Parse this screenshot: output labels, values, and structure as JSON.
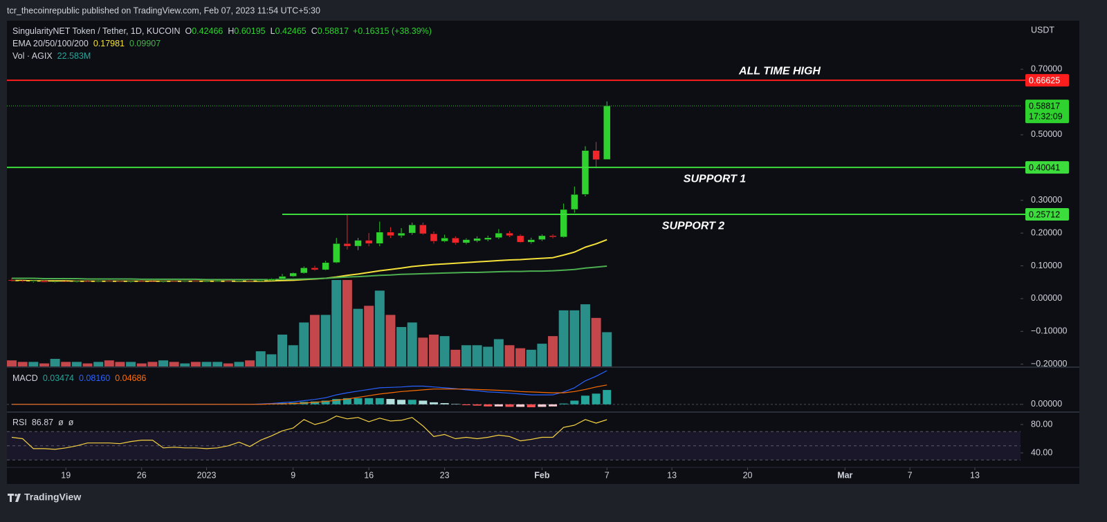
{
  "header": {
    "publisher": "tcr_thecoinrepublic published on TradingView.com, Feb 07, 2023 11:54 UTC+5:30"
  },
  "footer": {
    "brand": "TradingView"
  },
  "chart_data": {
    "type": "candlestick",
    "title": "SingularityNET Token / Tether, 1D, KUCOIN",
    "ohlc_labels": [
      "O",
      "H",
      "L",
      "C"
    ],
    "change": "+0.16315 (+38.39%)",
    "currency": "USDT",
    "countdown": "17:32:09",
    "up_color": "#2ed12e",
    "down_color": "#f2262a",
    "open": [
      0.057,
      0.054,
      0.052,
      0.054,
      0.05,
      0.052,
      0.051,
      0.053,
      0.052,
      0.054,
      0.053,
      0.051,
      0.053,
      0.052,
      0.051,
      0.053,
      0.052,
      0.054,
      0.052,
      0.053,
      0.054,
      0.053,
      0.055,
      0.054,
      0.056,
      0.06,
      0.068,
      0.078,
      0.094,
      0.088,
      0.11,
      0.168,
      0.16,
      0.178,
      0.168,
      0.203,
      0.192,
      0.2,
      0.225,
      0.198,
      0.175,
      0.185,
      0.17,
      0.176,
      0.18,
      0.186,
      0.2,
      0.192,
      0.172,
      0.18,
      0.192,
      0.188,
      0.272,
      0.318,
      0.452,
      0.42466
    ],
    "high": [
      0.063,
      0.057,
      0.056,
      0.057,
      0.054,
      0.055,
      0.055,
      0.056,
      0.056,
      0.057,
      0.055,
      0.055,
      0.056,
      0.054,
      0.055,
      0.055,
      0.056,
      0.056,
      0.055,
      0.056,
      0.057,
      0.057,
      0.059,
      0.058,
      0.062,
      0.075,
      0.08,
      0.098,
      0.1,
      0.115,
      0.185,
      0.258,
      0.185,
      0.2,
      0.235,
      0.218,
      0.215,
      0.232,
      0.232,
      0.205,
      0.195,
      0.19,
      0.184,
      0.19,
      0.192,
      0.212,
      0.206,
      0.196,
      0.186,
      0.196,
      0.196,
      0.29,
      0.342,
      0.465,
      0.478,
      0.60195
    ],
    "low": [
      0.052,
      0.05,
      0.049,
      0.049,
      0.048,
      0.05,
      0.049,
      0.051,
      0.05,
      0.052,
      0.05,
      0.049,
      0.051,
      0.05,
      0.049,
      0.051,
      0.05,
      0.051,
      0.05,
      0.051,
      0.052,
      0.051,
      0.053,
      0.052,
      0.054,
      0.058,
      0.066,
      0.076,
      0.085,
      0.086,
      0.108,
      0.15,
      0.148,
      0.16,
      0.16,
      0.185,
      0.186,
      0.195,
      0.195,
      0.168,
      0.172,
      0.165,
      0.166,
      0.172,
      0.175,
      0.182,
      0.188,
      0.17,
      0.168,
      0.176,
      0.184,
      0.186,
      0.262,
      0.312,
      0.398,
      0.42465
    ],
    "close": [
      0.054,
      0.052,
      0.054,
      0.05,
      0.052,
      0.051,
      0.053,
      0.052,
      0.054,
      0.053,
      0.051,
      0.053,
      0.052,
      0.051,
      0.053,
      0.052,
      0.054,
      0.052,
      0.053,
      0.054,
      0.053,
      0.055,
      0.054,
      0.056,
      0.06,
      0.068,
      0.078,
      0.094,
      0.088,
      0.11,
      0.168,
      0.16,
      0.178,
      0.168,
      0.203,
      0.192,
      0.2,
      0.225,
      0.198,
      0.175,
      0.185,
      0.17,
      0.18,
      0.184,
      0.186,
      0.2,
      0.192,
      0.172,
      0.18,
      0.192,
      0.188,
      0.272,
      0.318,
      0.452,
      0.424,
      0.58817
    ],
    "xlim": [
      -0.45,
      93.22
    ],
    "xticks": [
      {
        "value": 5,
        "label": "19"
      },
      {
        "value": 12,
        "label": "26"
      },
      {
        "value": 18,
        "label": "2023"
      },
      {
        "value": 26,
        "label": "9"
      },
      {
        "value": 33,
        "label": "16"
      },
      {
        "value": 40,
        "label": "23"
      },
      {
        "value": 49,
        "label": "Feb"
      },
      {
        "value": 55,
        "label": "7"
      },
      {
        "value": 61,
        "label": "13"
      },
      {
        "value": 68,
        "label": "20"
      },
      {
        "value": 77,
        "label": "Mar"
      },
      {
        "value": 83,
        "label": "7"
      },
      {
        "value": 89,
        "label": "13"
      }
    ],
    "ylim": [
      -0.207,
      0.848
    ],
    "yticks": [
      {
        "value": 0.7,
        "label": "0.70000"
      },
      {
        "value": 0.5,
        "label": "0.50000"
      },
      {
        "value": 0.3,
        "label": "0.30000"
      },
      {
        "value": 0.2,
        "label": "0.20000"
      },
      {
        "value": 0.1,
        "label": "0.10000"
      },
      {
        "value": 0,
        "label": "0.00000"
      },
      {
        "value": -0.1,
        "label": "−0.10000"
      },
      {
        "value": -0.2,
        "label": "−0.20000"
      }
    ],
    "ema": {
      "name": "EMA 20/50/100/200",
      "series": [
        {
          "color": "#f5e13a",
          "values": [
            0.055,
            0.055,
            0.054,
            0.054,
            0.054,
            0.054,
            0.053,
            0.053,
            0.053,
            0.053,
            0.053,
            0.053,
            0.053,
            0.053,
            0.053,
            0.053,
            0.053,
            0.053,
            0.053,
            0.053,
            0.053,
            0.053,
            0.053,
            0.053,
            0.054,
            0.055,
            0.056,
            0.058,
            0.06,
            0.062,
            0.066,
            0.071,
            0.075,
            0.08,
            0.085,
            0.089,
            0.093,
            0.098,
            0.101,
            0.104,
            0.106,
            0.108,
            0.11,
            0.112,
            0.114,
            0.116,
            0.118,
            0.119,
            0.121,
            0.123,
            0.125,
            0.133,
            0.142,
            0.157,
            0.167,
            0.17981
          ]
        },
        {
          "color": "#4caf50",
          "values": [
            0.062,
            0.062,
            0.062,
            0.061,
            0.061,
            0.061,
            0.061,
            0.06,
            0.06,
            0.06,
            0.06,
            0.06,
            0.059,
            0.059,
            0.059,
            0.059,
            0.059,
            0.059,
            0.058,
            0.058,
            0.058,
            0.058,
            0.058,
            0.058,
            0.058,
            0.059,
            0.059,
            0.06,
            0.061,
            0.062,
            0.064,
            0.066,
            0.067,
            0.069,
            0.071,
            0.072,
            0.074,
            0.075,
            0.076,
            0.077,
            0.078,
            0.079,
            0.08,
            0.08,
            0.081,
            0.082,
            0.083,
            0.083,
            0.084,
            0.084,
            0.085,
            0.087,
            0.089,
            0.093,
            0.096,
            0.09907
          ]
        }
      ]
    },
    "volume": {
      "name": "Vol · AGIX",
      "value_label": "22.583M",
      "up_color": "#2a8f88",
      "down_color": "#c4474b",
      "label_color": "#26a69a",
      "values": [
        4,
        3,
        3,
        2,
        5,
        3,
        3,
        2,
        3,
        4,
        3,
        3,
        2,
        3,
        4,
        3,
        2,
        3,
        3,
        3,
        2,
        3,
        4,
        10,
        8,
        21,
        14,
        29,
        34,
        34,
        57,
        57,
        38,
        40,
        50,
        34,
        26,
        29,
        19,
        21,
        20,
        11,
        14,
        14,
        13,
        18,
        14,
        12,
        11,
        15,
        20,
        37,
        37,
        41,
        32,
        22.583
      ]
    },
    "levels": [
      {
        "value": 0.66625,
        "color": "#ff1e1e",
        "label": "ALL TIME HIGH"
      },
      {
        "value": 0.40041,
        "color": "#3cdc3c",
        "label": "SUPPORT 1"
      },
      {
        "value": 0.25712,
        "color": "#3cdc3c",
        "label": "SUPPORT 2"
      }
    ],
    "macd": {
      "name": "MACD",
      "ylim": [
        -0.017,
        0.0884
      ],
      "yticks": [
        {
          "value": 0,
          "label": "0.00000"
        }
      ],
      "histogram": {
        "colors": [
          "#26a69a",
          "#b2dfdb",
          "#ff5252",
          "#ffcdd2"
        ],
        "values": [
          0,
          0,
          0,
          0,
          0,
          0,
          0,
          0,
          0,
          0,
          0,
          0,
          0,
          0,
          0,
          0,
          0,
          0,
          0,
          0,
          0,
          0,
          0,
          0.001,
          0.001,
          0.003,
          0.004,
          0.006,
          0.007,
          0.009,
          0.013,
          0.015,
          0.015,
          0.015,
          0.015,
          0.013,
          0.011,
          0.011,
          0.009,
          0.005,
          0.003,
          0.001,
          -0.002,
          -0.003,
          -0.005,
          -0.005,
          -0.006,
          -0.006,
          -0.007,
          -0.006,
          -0.005,
          0.002,
          0.009,
          0.021,
          0.026,
          0.03474
        ]
      },
      "series": [
        {
          "color": "#2962ff",
          "value_label": "0.08160",
          "values": [
            0,
            0,
            0,
            0,
            0,
            0,
            0,
            0,
            0,
            0,
            0,
            0,
            0,
            0,
            0,
            0,
            0,
            0,
            0,
            0,
            0,
            0,
            0,
            0.001,
            0.002,
            0.004,
            0.006,
            0.009,
            0.012,
            0.016,
            0.023,
            0.028,
            0.032,
            0.036,
            0.04,
            0.041,
            0.042,
            0.044,
            0.044,
            0.042,
            0.04,
            0.038,
            0.035,
            0.033,
            0.03,
            0.029,
            0.027,
            0.025,
            0.023,
            0.023,
            0.023,
            0.03,
            0.04,
            0.057,
            0.068,
            0.0816
          ]
        },
        {
          "color": "#ff6d00",
          "values": [
            0,
            0,
            0,
            0,
            0,
            0,
            0,
            0,
            0,
            0,
            0,
            0,
            0,
            0,
            0,
            0,
            0,
            0,
            0,
            0,
            0,
            0,
            0,
            0.0,
            0.001,
            0.001,
            0.002,
            0.003,
            0.005,
            0.007,
            0.01,
            0.013,
            0.017,
            0.021,
            0.025,
            0.028,
            0.031,
            0.033,
            0.035,
            0.037,
            0.037,
            0.037,
            0.037,
            0.036,
            0.035,
            0.034,
            0.033,
            0.031,
            0.03,
            0.029,
            0.028,
            0.028,
            0.031,
            0.036,
            0.042,
            0.04686
          ]
        }
      ]
    },
    "rsi": {
      "name": "RSI",
      "extras": [
        "ø",
        "ø"
      ],
      "color": "#f5d142",
      "bands": [
        30,
        50,
        70
      ],
      "band_color": "#7e57c2",
      "ylim": [
        20.5,
        96.6
      ],
      "yticks": [
        {
          "value": 80,
          "label": "80.00"
        },
        {
          "value": 40,
          "label": "40.00"
        }
      ],
      "values": [
        62,
        60,
        46,
        46,
        45,
        47,
        50,
        54,
        54,
        54,
        53,
        56,
        58,
        58,
        47,
        48,
        47,
        47,
        46,
        47,
        50,
        55,
        49,
        58,
        64,
        71,
        75,
        87,
        80,
        84,
        92,
        88,
        90,
        84,
        89,
        85,
        86,
        90,
        78,
        63,
        66,
        60,
        62,
        60,
        62,
        65,
        63,
        57,
        59,
        62,
        62,
        76,
        79,
        87,
        82,
        86.87
      ]
    }
  }
}
